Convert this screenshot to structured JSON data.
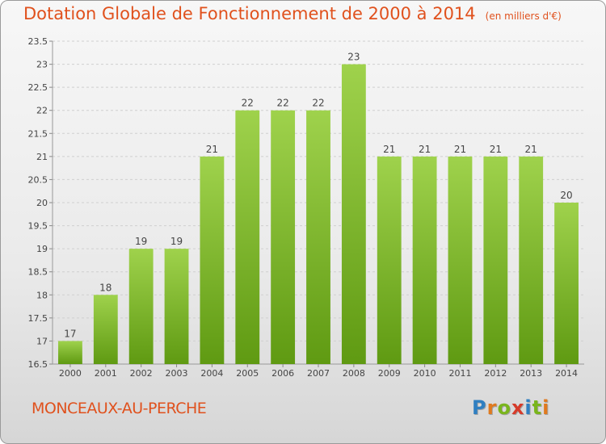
{
  "title": "Dotation Globale de Fonctionnement de 2000 à 2014",
  "subtitle": "(en milliers d'€)",
  "commune": "MONCEAUX-AU-PERCHE",
  "logo": {
    "letters": [
      "P",
      "r",
      "o",
      "x",
      "i",
      "t",
      "i"
    ],
    "colors": [
      "#2f7fc1",
      "#e07a1f",
      "#7ab51d",
      "#d63b2a",
      "#2f7fc1",
      "#7ab51d",
      "#e07a1f"
    ]
  },
  "colors": {
    "bar_light": "#9fd24c",
    "bar_dark": "#5f9a12",
    "label": "#444444",
    "title": "#e0511d"
  },
  "chart_data": {
    "type": "bar",
    "title": "Dotation Globale de Fonctionnement de 2000 à 2014",
    "subtitle": "(en milliers d'€)",
    "categories": [
      "2000",
      "2001",
      "2002",
      "2003",
      "2004",
      "2005",
      "2006",
      "2007",
      "2008",
      "2009",
      "2010",
      "2011",
      "2012",
      "2013",
      "2014"
    ],
    "values": [
      17,
      18,
      19,
      19,
      21,
      22,
      22,
      22,
      23,
      21,
      21,
      21,
      21,
      21,
      20
    ],
    "data_labels": [
      "17",
      "18",
      "19",
      "19",
      "21",
      "22",
      "22",
      "22",
      "23",
      "21",
      "21",
      "21",
      "21",
      "21",
      "20"
    ],
    "ylim": [
      16.5,
      23.5
    ],
    "yticks": [
      16.5,
      17,
      17.5,
      18,
      18.5,
      19,
      19.5,
      20,
      20.5,
      21,
      21.5,
      22,
      22.5,
      23,
      23.5
    ],
    "ytick_labels": [
      "16.5",
      "17",
      "17.5",
      "18",
      "18.5",
      "19",
      "19.5",
      "20",
      "20.5",
      "21",
      "21.5",
      "22",
      "22.5",
      "23",
      "23.5"
    ],
    "grid": true,
    "legend": "none"
  }
}
